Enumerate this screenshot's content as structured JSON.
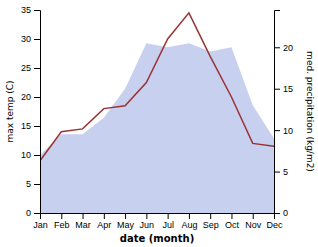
{
  "chart_data": {
    "type": "line",
    "categories": [
      "Jan",
      "Feb",
      "Mar",
      "Apr",
      "May",
      "Jun",
      "Jul",
      "Aug",
      "Sep",
      "Oct",
      "Nov",
      "Dec"
    ],
    "series": [
      {
        "type": "area",
        "axis": "y2",
        "color": "#c8d0f0",
        "values": [
          7.0,
          9.5,
          9.5,
          11.5,
          15.0,
          20.5,
          20.0,
          20.5,
          19.5,
          20.0,
          13.0,
          9.0
        ]
      },
      {
        "type": "line",
        "color": "#993333",
        "values": [
          9.0,
          14.0,
          14.5,
          18.0,
          18.5,
          22.5,
          30.0,
          34.5,
          27.0,
          20.0,
          12.0,
          11.5
        ]
      }
    ],
    "xlabel": "date (month)",
    "ylabel": "max temp (C)",
    "y2label": "med. precipitation (kg/m2)",
    "ylim": [
      0,
      35
    ],
    "yticks": [
      0,
      5,
      10,
      15,
      20,
      25,
      30,
      35
    ],
    "y2lim": [
      0,
      24.5
    ],
    "y2ticks": [
      0,
      5,
      10,
      15,
      20
    ],
    "grid": false
  }
}
